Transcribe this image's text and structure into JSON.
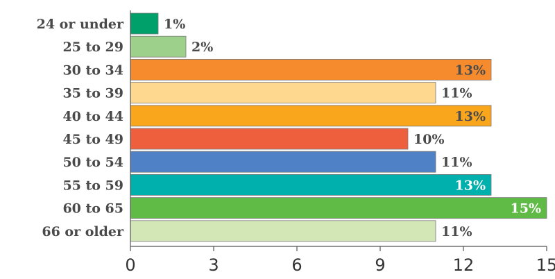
{
  "chart_data": {
    "type": "bar",
    "orientation": "horizontal",
    "categories": [
      "24 or under",
      "25 to 29",
      "30 to 34",
      "35 to 39",
      "40 to 44",
      "45 to 49",
      "50 to 54",
      "55 to 59",
      "60 to 65",
      "66 or older"
    ],
    "values": [
      1,
      2,
      13,
      11,
      13,
      10,
      11,
      13,
      15,
      11
    ],
    "value_labels": [
      "1%",
      "2%",
      "13%",
      "11%",
      "13%",
      "10%",
      "11%",
      "13%",
      "15%",
      "11%"
    ],
    "label_inside": [
      false,
      false,
      true,
      false,
      true,
      false,
      false,
      true,
      true,
      false
    ],
    "label_colors": [
      "#4a4a4a",
      "#4a4a4a",
      "#4a4a4a",
      "#4a4a4a",
      "#4a4a4a",
      "#4a4a4a",
      "#4a4a4a",
      "#ffffff",
      "#ffffff",
      "#4a4a4a"
    ],
    "colors": [
      "#00a06b",
      "#9dd08a",
      "#f68b2d",
      "#fed88f",
      "#f9a61c",
      "#ee5f3e",
      "#4f81c7",
      "#00b0ac",
      "#5fbb45",
      "#d3e6b6"
    ],
    "xlim": [
      0,
      15
    ],
    "xticks": [
      0,
      3,
      6,
      9,
      12,
      15
    ],
    "title": "",
    "xlabel": "",
    "ylabel": "",
    "grid": false,
    "legend": "none"
  }
}
